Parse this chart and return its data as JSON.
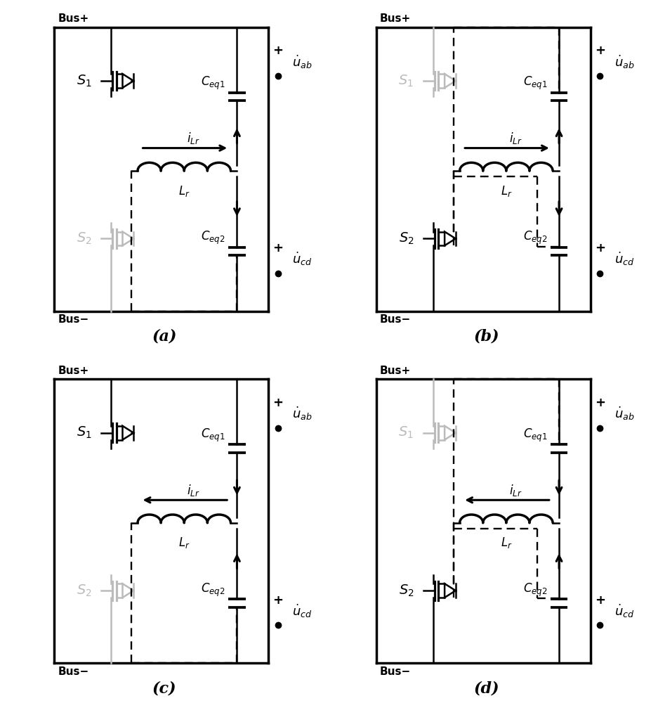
{
  "panels": [
    "a",
    "b",
    "c",
    "d"
  ],
  "bg_color": "#ffffff",
  "black": "#000000",
  "gray": "#bbbbbb",
  "active_s1": [
    true,
    false,
    true,
    false
  ],
  "active_s2": [
    false,
    true,
    false,
    true
  ],
  "current_dir_up_cap1": [
    true,
    true,
    false,
    false
  ],
  "current_dir_up_cap2": [
    false,
    false,
    true,
    true
  ],
  "current_right": [
    true,
    true,
    true,
    true
  ],
  "ilr_arrow_left": [
    false,
    false,
    true,
    true
  ],
  "figsize": [
    9.27,
    10.0
  ],
  "dpi": 100
}
